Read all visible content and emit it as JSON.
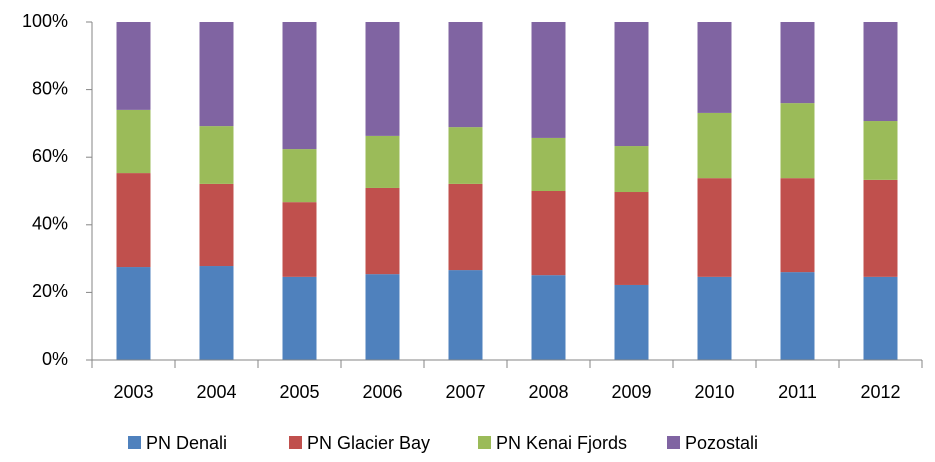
{
  "chart_data": {
    "type": "stacked_bar",
    "categories": [
      "2003",
      "2004",
      "2005",
      "2006",
      "2007",
      "2008",
      "2009",
      "2010",
      "2011",
      "2012"
    ],
    "series": [
      {
        "name": "PN Denali",
        "color": "#4f81bd",
        "values": [
          27.5,
          27.8,
          24.6,
          25.4,
          26.6,
          25.1,
          22.2,
          24.6,
          26,
          24.6
        ]
      },
      {
        "name": "PN Glacier Bay",
        "color": "#c0504d",
        "values": [
          27.8,
          24.3,
          22.1,
          25.5,
          25.5,
          24.9,
          27.5,
          29.2,
          27.8,
          28.7
        ]
      },
      {
        "name": "PN Kenai Fjords",
        "color": "#9bbb59",
        "values": [
          18.7,
          17.1,
          15.7,
          15.4,
          16.8,
          15.7,
          13.6,
          19.3,
          22.2,
          17.4
        ]
      },
      {
        "name": "Pozostali",
        "color": "#8064a2",
        "values": [
          26,
          30.8,
          37.6,
          33.7,
          31.1,
          34.3,
          36.7,
          26.9,
          24,
          29.3
        ]
      }
    ],
    "ylim": [
      0,
      100
    ],
    "yticks": [
      {
        "value": 0,
        "label": "0%"
      },
      {
        "value": 20,
        "label": "20%"
      },
      {
        "value": 40,
        "label": "40%"
      },
      {
        "value": 60,
        "label": "60%"
      },
      {
        "value": 80,
        "label": "80%"
      },
      {
        "value": 100,
        "label": "100%"
      }
    ],
    "legend": "bottom"
  }
}
